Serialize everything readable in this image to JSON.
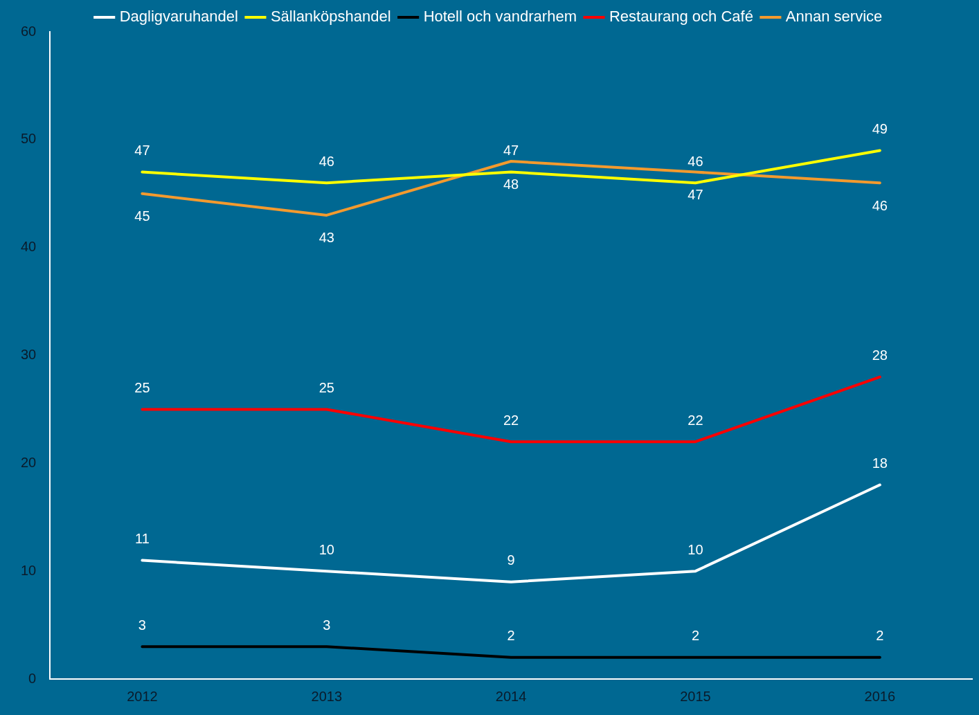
{
  "chart_data": {
    "type": "line",
    "categories": [
      "2012",
      "2013",
      "2014",
      "2015",
      "2016"
    ],
    "series": [
      {
        "name": "Dagligvaruhandel",
        "color": "#ffffff",
        "values": [
          11,
          10,
          9,
          10,
          18
        ]
      },
      {
        "name": "Sällanköpshandel",
        "color": "#ffff00",
        "values": [
          47,
          46,
          47,
          46,
          49
        ]
      },
      {
        "name": "Hotell och vandrarhem",
        "color": "#000000",
        "values": [
          3,
          3,
          2,
          2,
          2
        ]
      },
      {
        "name": "Restaurang och Café",
        "color": "#ff0000",
        "values": [
          25,
          25,
          22,
          22,
          28
        ]
      },
      {
        "name": "Annan service",
        "color": "#f39a2e",
        "values": [
          45,
          43,
          48,
          47,
          46
        ]
      }
    ],
    "ylim": [
      0,
      60
    ],
    "yticks": [
      0,
      10,
      20,
      30,
      40,
      50,
      60
    ],
    "grid": false,
    "legend": "top",
    "marker": "none",
    "line_style": "solid",
    "data_labels": true
  }
}
